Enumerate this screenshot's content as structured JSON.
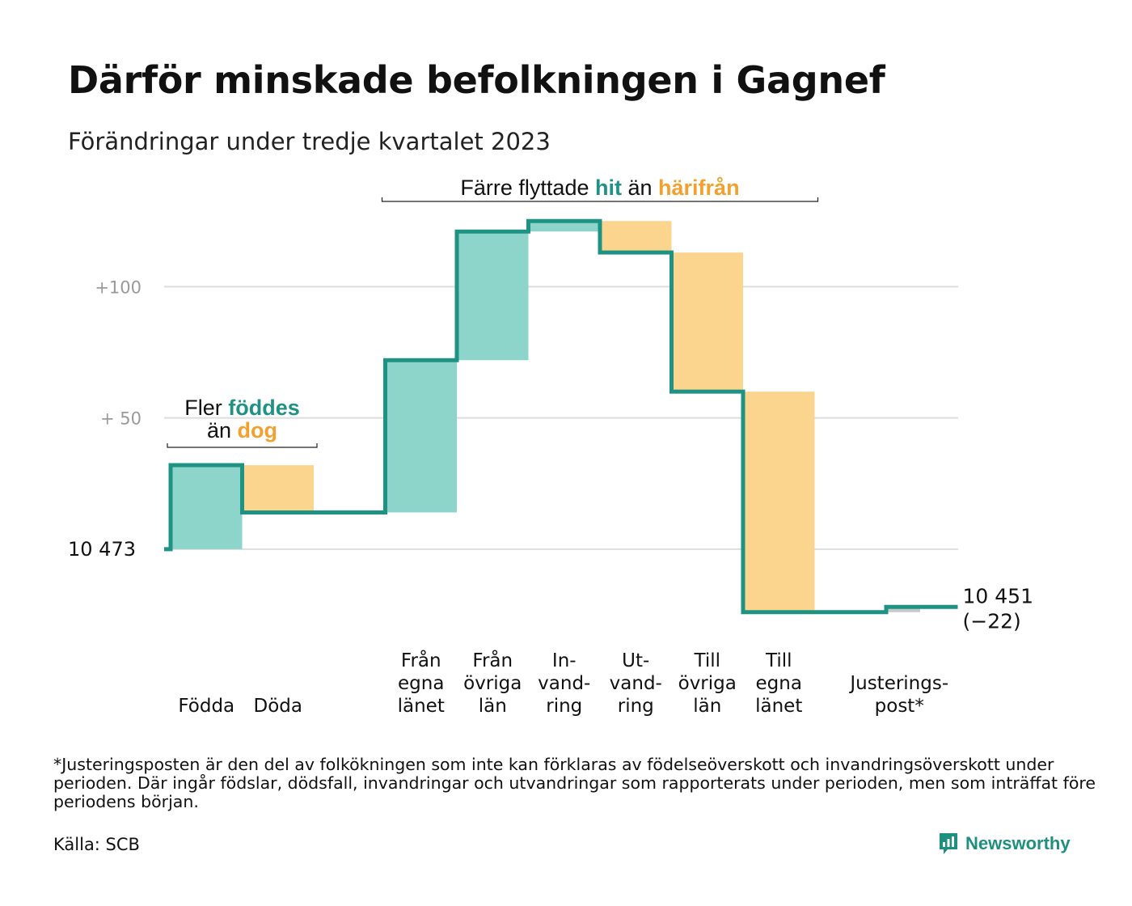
{
  "title": "Därför minskade befolkningen i Gagnef",
  "subtitle": "Förändringar under tredje kvartalet 2023",
  "footnote": "*Justeringsposten är den del av folkökningen som inte kan förklaras av födelseöverskott och invandringsöverskott under perioden. Där ingår födslar, dödsfall, invandringar och utvandringar som rapporterats under perioden, men som inträffat före periodens början.",
  "source": "Källa: SCB",
  "brand": {
    "name": "Newsworthy",
    "icon": "newsworthy-logo-icon"
  },
  "colors": {
    "line": "#1f9383",
    "increase": "#8dd4cb",
    "decrease": "#fbd58e",
    "adjustment": "#c8c8c8",
    "grid": "#dddddd",
    "hit": "#1f9383",
    "harifran": "#f2a12e"
  },
  "chart_data": {
    "type": "waterfall",
    "start": {
      "label": "10 473",
      "value": 0
    },
    "end": {
      "label_total": "10 451",
      "label_change": "(−22)",
      "value": -22
    },
    "ylim": [
      -25,
      126
    ],
    "y_ticks": [
      {
        "value": 100,
        "label": "+100"
      },
      {
        "value": 50,
        "label": "+  50"
      },
      {
        "value": 0,
        "label": "10  473"
      }
    ],
    "grid": true,
    "steps": [
      {
        "name": "Födda",
        "label_lines": [
          "Födda"
        ],
        "value": 32,
        "kind": "increase"
      },
      {
        "name": "Döda",
        "label_lines": [
          "Döda"
        ],
        "value": -18,
        "kind": "decrease"
      },
      {
        "name": "gap",
        "label_lines": [],
        "value": 0,
        "kind": "gap"
      },
      {
        "name": "Från egna länet",
        "label_lines": [
          "Från",
          "egna",
          "länet"
        ],
        "value": 58,
        "kind": "increase"
      },
      {
        "name": "Från övriga län",
        "label_lines": [
          "Från",
          "övriga",
          "län"
        ],
        "value": 49,
        "kind": "increase"
      },
      {
        "name": "Invandring",
        "label_lines": [
          "In-",
          "vand-",
          "ring"
        ],
        "value": 4,
        "kind": "increase"
      },
      {
        "name": "Utvandring",
        "label_lines": [
          "Ut-",
          "vand-",
          "ring"
        ],
        "value": -12,
        "kind": "decrease"
      },
      {
        "name": "Till övriga län",
        "label_lines": [
          "Till",
          "övriga",
          "län"
        ],
        "value": -53,
        "kind": "decrease"
      },
      {
        "name": "Till egna länet",
        "label_lines": [
          "Till",
          "egna",
          "länet"
        ],
        "value": -84,
        "kind": "decrease"
      },
      {
        "name": "gap",
        "label_lines": [],
        "value": 0,
        "kind": "gap"
      },
      {
        "name": "Justeringspost",
        "label_lines": [
          "Justerings-",
          "post*"
        ],
        "value": 2,
        "kind": "adjustment"
      }
    ],
    "annotations": [
      {
        "id": "births",
        "line1_plain": "Fler ",
        "line1_hl": "föddes",
        "line2_plain": "än ",
        "line2_hl": "dog",
        "span": [
          0,
          1
        ]
      },
      {
        "id": "moves",
        "plain1": "Färre flyttade ",
        "hl1": "hit",
        "plain2": "än ",
        "hl2": "härifrån",
        "span": [
          3,
          8
        ]
      }
    ]
  }
}
